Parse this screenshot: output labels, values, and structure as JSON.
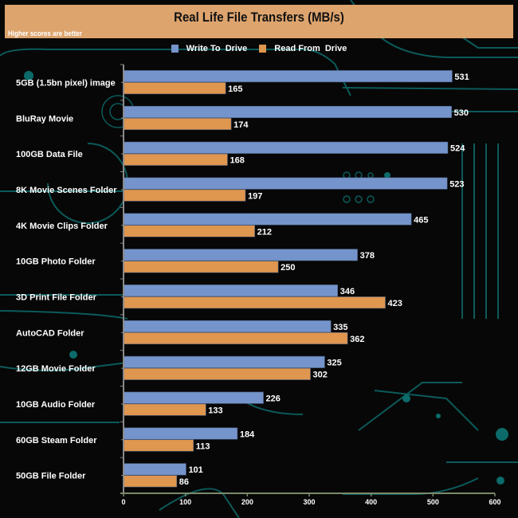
{
  "chart_data": {
    "type": "bar",
    "orientation": "horizontal",
    "title": "Real Life File Transfers (MB/s)",
    "subtitle": "Higher scores are better",
    "xlabel": "",
    "ylabel": "",
    "xlim": [
      0,
      600
    ],
    "xticks": [
      0,
      100,
      200,
      300,
      400,
      500,
      600
    ],
    "legend_position": "top-center",
    "categories": [
      "5GB (1.5bn pixel) image",
      "BluRay Movie",
      "100GB Data File",
      "8K Movie Scenes Folder",
      "4K Movie Clips Folder",
      "10GB Photo Folder",
      "3D Print File Folder",
      "AutoCAD Folder",
      "12GB Movie Folder",
      "10GB Audio Folder",
      "60GB Steam Folder",
      "50GB File Folder"
    ],
    "series": [
      {
        "name": "Write To  Drive",
        "color": "#7594cc",
        "values": [
          531,
          530,
          524,
          523,
          465,
          378,
          346,
          335,
          325,
          226,
          184,
          101
        ]
      },
      {
        "name": "Read From  Drive",
        "color": "#df964e",
        "values": [
          165,
          174,
          168,
          197,
          212,
          250,
          423,
          362,
          302,
          133,
          113,
          86
        ]
      }
    ]
  },
  "colors": {
    "title_bar": "#dda46e",
    "background": "#070707",
    "circuit": "#0c5a5a",
    "axis": "#7a8a6a"
  }
}
